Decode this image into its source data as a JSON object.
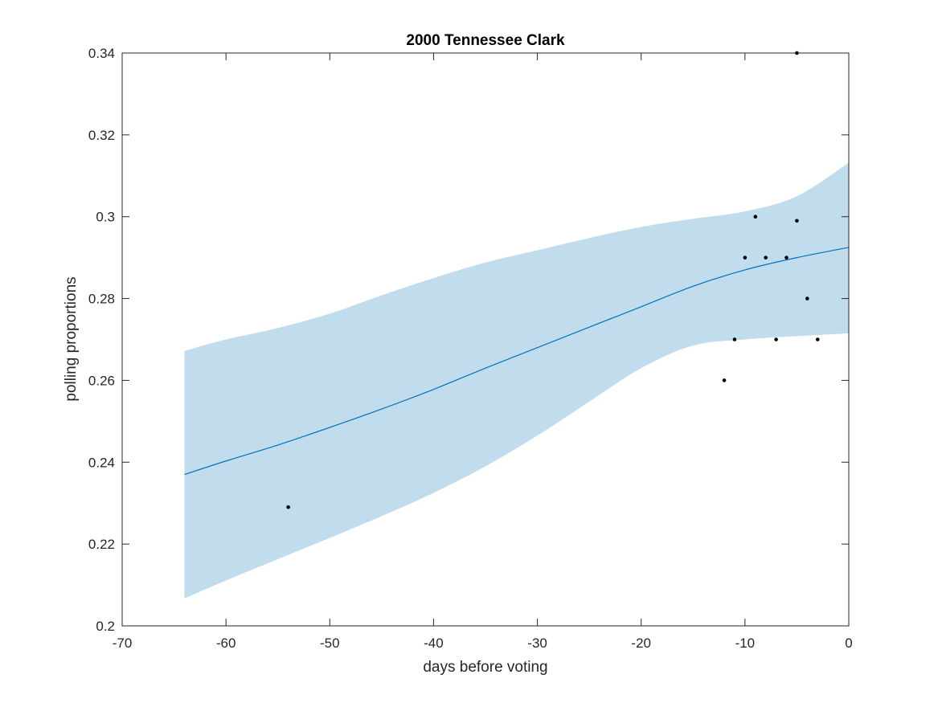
{
  "chart_data": {
    "type": "line",
    "title": "2000 Tennessee Clark",
    "xlabel": "days before voting",
    "ylabel": "polling proportions",
    "xlim": [
      -70,
      0
    ],
    "ylim": [
      0.2,
      0.34
    ],
    "xticks": [
      -70,
      -60,
      -50,
      -40,
      -30,
      -20,
      -10,
      0
    ],
    "yticks": [
      0.2,
      0.22,
      0.24,
      0.26,
      0.28,
      0.3,
      0.32,
      0.34
    ],
    "xtick_labels": [
      "-70",
      "-60",
      "-50",
      "-40",
      "-30",
      "-20",
      "-10",
      "0"
    ],
    "ytick_labels": [
      "0.2",
      "0.22",
      "0.24",
      "0.26",
      "0.28",
      "0.3",
      "0.32",
      "0.34"
    ],
    "grid": false,
    "colors": {
      "band": "#c1dcec",
      "line": "#0072bd",
      "points": "#000000",
      "axes": "#262626"
    },
    "series": [
      {
        "type": "area-band",
        "x": [
          -64,
          -60,
          -55,
          -50,
          -45,
          -40,
          -35,
          -30,
          -25,
          -20,
          -15,
          -10,
          -5,
          0
        ],
        "lower": [
          0.2067,
          0.2111,
          0.2163,
          0.2215,
          0.2268,
          0.2325,
          0.239,
          0.2465,
          0.2548,
          0.263,
          0.2685,
          0.27,
          0.2708,
          0.2715
        ],
        "upper": [
          0.2672,
          0.27,
          0.2728,
          0.2763,
          0.2808,
          0.285,
          0.2888,
          0.2918,
          0.2948,
          0.2975,
          0.2995,
          0.3013,
          0.305,
          0.3132
        ]
      },
      {
        "type": "line",
        "x": [
          -64,
          -60,
          -55,
          -50,
          -45,
          -40,
          -35,
          -30,
          -25,
          -20,
          -15,
          -10,
          -5,
          0
        ],
        "y": [
          0.237,
          0.2403,
          0.2442,
          0.2485,
          0.253,
          0.2578,
          0.263,
          0.268,
          0.273,
          0.278,
          0.283,
          0.287,
          0.29,
          0.2925
        ]
      },
      {
        "type": "scatter",
        "x": [
          -54,
          -12,
          -11,
          -10,
          -9,
          -8,
          -7,
          -6,
          -5,
          -5,
          -4,
          -3
        ],
        "y": [
          0.229,
          0.26,
          0.27,
          0.29,
          0.3,
          0.29,
          0.27,
          0.29,
          0.299,
          0.34,
          0.28,
          0.27
        ]
      }
    ]
  }
}
